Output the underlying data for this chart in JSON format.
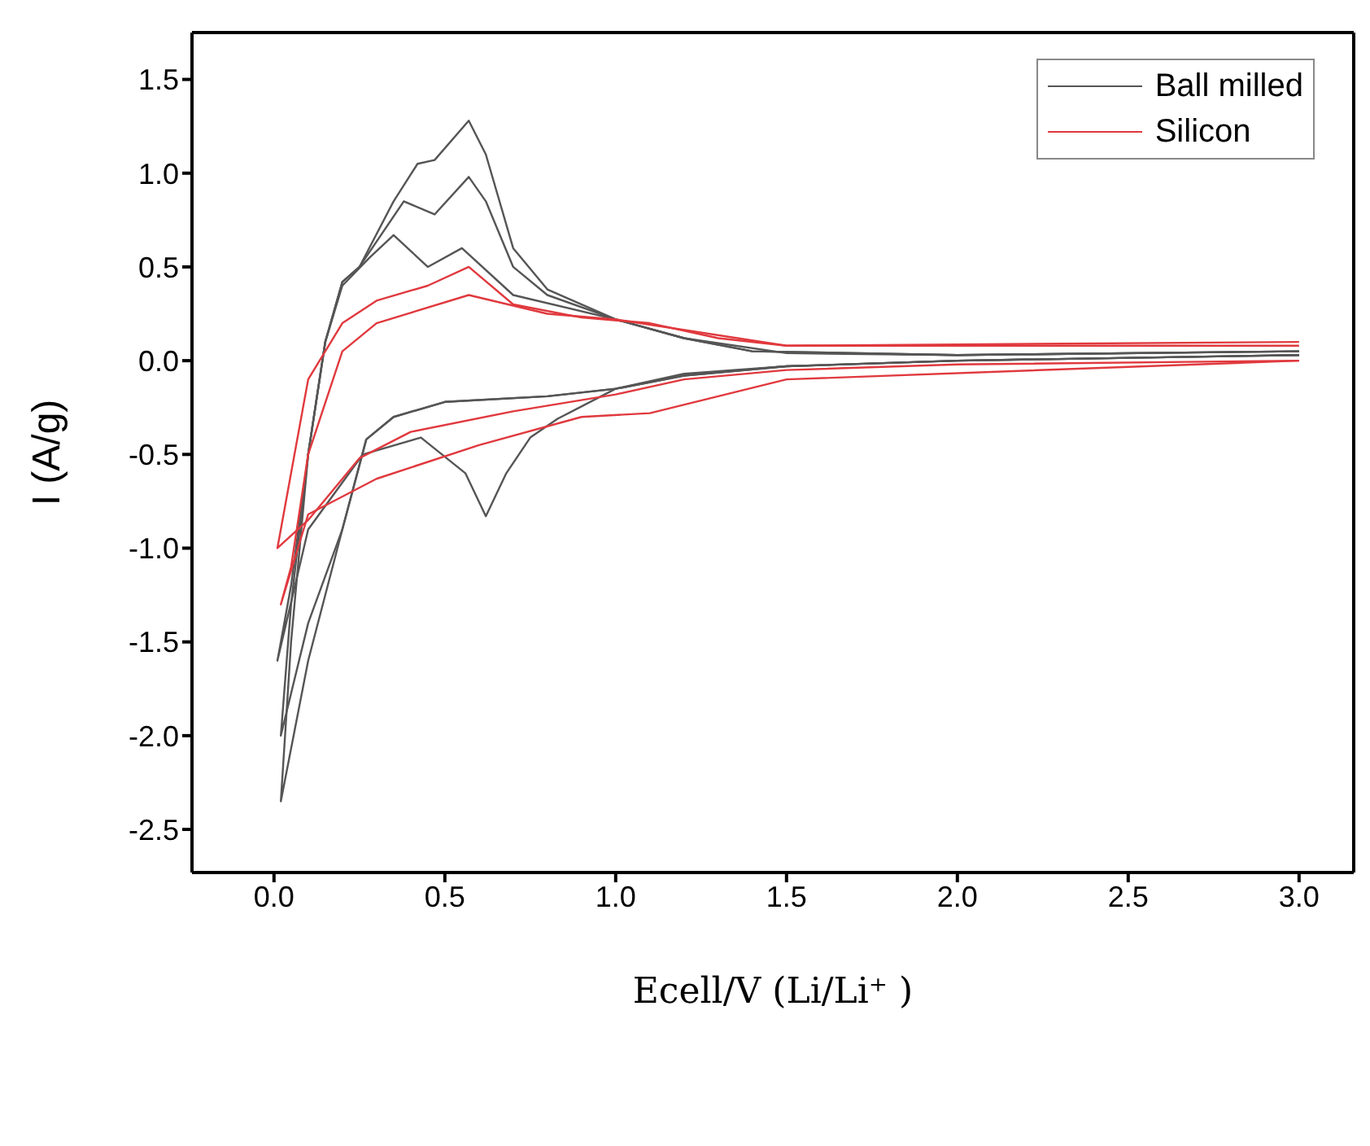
{
  "chart_data": {
    "type": "line",
    "xlabel": "Ecell/V (Li/Li⁺ )",
    "ylabel": "I (A/g)",
    "xlim": [
      -0.24,
      3.16
    ],
    "ylim": [
      -2.73,
      1.75
    ],
    "xticks": [
      {
        "value": 0,
        "label": "0.0"
      },
      {
        "value": 0.5,
        "label": "0.5"
      },
      {
        "value": 1,
        "label": "1.0"
      },
      {
        "value": 1.5,
        "label": "1.5"
      },
      {
        "value": 2,
        "label": "2.0"
      },
      {
        "value": 2.5,
        "label": "2.5"
      },
      {
        "value": 3,
        "label": "3.0"
      }
    ],
    "yticks": [
      {
        "value": -2.5,
        "label": "-2.5"
      },
      {
        "value": -2,
        "label": "-2.0"
      },
      {
        "value": -1.5,
        "label": "-1.5"
      },
      {
        "value": -1,
        "label": "-1.0"
      },
      {
        "value": -0.5,
        "label": "-0.5"
      },
      {
        "value": 0,
        "label": "0.0"
      },
      {
        "value": 0.5,
        "label": "0.5"
      },
      {
        "value": 1,
        "label": "1.0"
      },
      {
        "value": 1.5,
        "label": "1.5"
      }
    ],
    "grid": false,
    "legend": "top right",
    "marker": "none",
    "line_style": "solid",
    "series": [
      {
        "name": "Ball milled",
        "color": "#555555",
        "x": [
          3.0,
          2.0,
          1.5,
          1.2,
          1.0,
          0.83,
          0.75,
          0.68,
          0.62,
          0.56,
          0.43,
          0.26,
          0.1,
          0.01,
          0.05,
          0.1,
          0.15,
          0.2,
          0.28,
          0.35,
          0.45,
          0.55,
          0.7,
          1.0,
          1.2,
          1.5,
          2.0,
          3.0
        ],
        "values": [
          0.03,
          0.0,
          -0.03,
          -0.07,
          -0.15,
          -0.31,
          -0.41,
          -0.6,
          -0.83,
          -0.6,
          -0.41,
          -0.5,
          -0.9,
          -1.6,
          -1.2,
          -0.5,
          0.1,
          0.4,
          0.55,
          0.67,
          0.5,
          0.6,
          0.35,
          0.22,
          0.12,
          0.04,
          0.03,
          0.05
        ]
      },
      {
        "color": "#555555",
        "x": [
          3.0,
          2.0,
          1.5,
          1.2,
          1.0,
          0.8,
          0.5,
          0.35,
          0.27,
          0.2,
          0.1,
          0.02,
          0.05,
          0.1,
          0.15,
          0.2,
          0.25,
          0.38,
          0.47,
          0.57,
          0.62,
          0.7,
          0.8,
          1.0,
          1.2,
          1.4,
          2.0,
          3.0
        ],
        "values": [
          0.03,
          0.0,
          -0.03,
          -0.08,
          -0.15,
          -0.19,
          -0.22,
          -0.3,
          -0.42,
          -0.9,
          -1.4,
          -2.0,
          -1.3,
          -0.5,
          0.1,
          0.42,
          0.5,
          0.85,
          0.78,
          0.98,
          0.85,
          0.5,
          0.35,
          0.22,
          0.12,
          0.05,
          0.03,
          0.05
        ]
      },
      {
        "color": "#555555",
        "x": [
          3.0,
          2.0,
          1.5,
          1.2,
          1.0,
          0.8,
          0.5,
          0.35,
          0.27,
          0.2,
          0.1,
          0.02,
          0.05,
          0.1,
          0.15,
          0.2,
          0.25,
          0.35,
          0.42,
          0.47,
          0.57,
          0.62,
          0.7,
          0.8,
          1.0,
          1.2,
          1.4,
          2.0,
          3.0
        ],
        "values": [
          0.03,
          0.0,
          -0.03,
          -0.08,
          -0.15,
          -0.19,
          -0.22,
          -0.3,
          -0.42,
          -0.9,
          -1.6,
          -2.35,
          -1.5,
          -0.5,
          0.1,
          0.42,
          0.5,
          0.85,
          1.05,
          1.07,
          1.28,
          1.1,
          0.6,
          0.38,
          0.22,
          0.12,
          0.05,
          0.03,
          0.05
        ]
      },
      {
        "name": "Silicon",
        "color": "#e0393e",
        "x": [
          3.0,
          1.5,
          1.1,
          0.9,
          0.6,
          0.3,
          0.1,
          0.02,
          0.05,
          0.1,
          0.2,
          0.3,
          0.57,
          0.8,
          1.0,
          1.5,
          3.0
        ],
        "values": [
          0.0,
          -0.1,
          -0.28,
          -0.3,
          -0.45,
          -0.63,
          -0.82,
          -1.3,
          -1.1,
          -0.5,
          0.05,
          0.2,
          0.35,
          0.25,
          0.22,
          0.08,
          0.08
        ]
      },
      {
        "color": "#e0393e",
        "x": [
          3.0,
          2.0,
          1.5,
          1.2,
          1.0,
          0.7,
          0.4,
          0.25,
          0.1,
          0.01,
          0.05,
          0.1,
          0.2,
          0.3,
          0.45,
          0.57,
          0.7,
          0.9,
          1.1,
          1.3,
          1.5,
          3.0
        ],
        "values": [
          0.0,
          -0.02,
          -0.05,
          -0.1,
          -0.18,
          -0.27,
          -0.38,
          -0.52,
          -0.85,
          -1.0,
          -0.6,
          -0.1,
          0.2,
          0.32,
          0.4,
          0.5,
          0.3,
          0.23,
          0.2,
          0.12,
          0.08,
          0.1
        ]
      }
    ]
  }
}
